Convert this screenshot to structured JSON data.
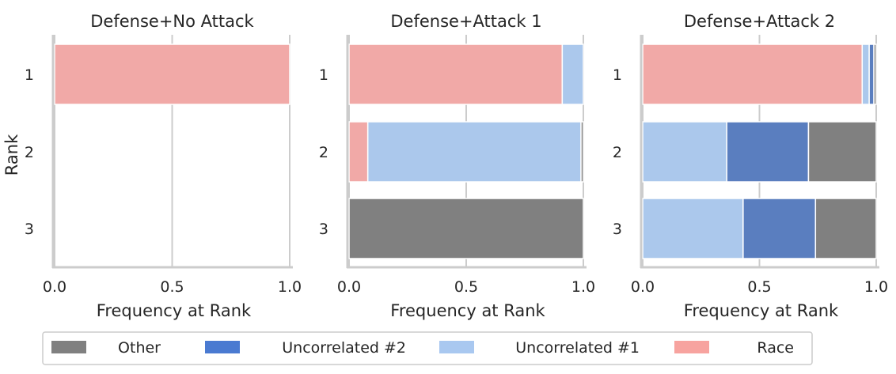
{
  "colors": {
    "Race": "#f1a9a7",
    "Uncorrelated #1": "#abc8ec",
    "Uncorrelated #2": "#5a7ebf",
    "Other": "#808080"
  },
  "legend": {
    "items": [
      "Other",
      "Uncorrelated #2",
      "Uncorrelated #1",
      "Race"
    ],
    "swatch_colors": {
      "Other": "#808080",
      "Uncorrelated #2": "#4a7ad1",
      "Uncorrelated #1": "#a9c8f0",
      "Race": "#f7a39f"
    },
    "placement": "bottom-center"
  },
  "chart_data": [
    {
      "type": "bar",
      "orientation": "horizontal",
      "stacked": true,
      "title": "Defense+No Attack",
      "xlabel": "Frequency at Rank",
      "ylabel": "Rank",
      "categories": [
        "1",
        "2",
        "3"
      ],
      "xlim": [
        0,
        1.0
      ],
      "xticks": [
        "0.0",
        "0.5",
        "1.0"
      ],
      "grid": "x",
      "series": [
        {
          "name": "Race",
          "values": [
            1.0,
            0,
            0
          ]
        },
        {
          "name": "Uncorrelated #1",
          "values": [
            0,
            0,
            0
          ]
        },
        {
          "name": "Uncorrelated #2",
          "values": [
            0,
            0,
            0
          ]
        },
        {
          "name": "Other",
          "values": [
            0,
            0,
            0
          ]
        }
      ]
    },
    {
      "type": "bar",
      "orientation": "horizontal",
      "stacked": true,
      "title": "Defense+Attack 1",
      "xlabel": "Frequency at Rank",
      "ylabel": "",
      "categories": [
        "1",
        "2",
        "3"
      ],
      "xlim": [
        0,
        1.0
      ],
      "xticks": [
        "0.0",
        "0.5",
        "1.0"
      ],
      "grid": "x",
      "series": [
        {
          "name": "Race",
          "values": [
            0.91,
            0.08,
            0
          ]
        },
        {
          "name": "Uncorrelated #1",
          "values": [
            0.09,
            0.91,
            0
          ]
        },
        {
          "name": "Uncorrelated #2",
          "values": [
            0,
            0,
            0
          ]
        },
        {
          "name": "Other",
          "values": [
            0,
            0.01,
            1.0
          ]
        }
      ]
    },
    {
      "type": "bar",
      "orientation": "horizontal",
      "stacked": true,
      "title": "Defense+Attack 2",
      "xlabel": "Frequency at Rank",
      "ylabel": "",
      "categories": [
        "1",
        "2",
        "3"
      ],
      "xlim": [
        0,
        1.0
      ],
      "xticks": [
        "0.0",
        "0.5",
        "1.0"
      ],
      "grid": "x",
      "series": [
        {
          "name": "Race",
          "values": [
            0.94,
            0,
            0
          ]
        },
        {
          "name": "Uncorrelated #1",
          "values": [
            0.03,
            0.36,
            0.43
          ]
        },
        {
          "name": "Uncorrelated #2",
          "values": [
            0.02,
            0.35,
            0.31
          ]
        },
        {
          "name": "Other",
          "values": [
            0.01,
            0.29,
            0.26
          ]
        }
      ]
    }
  ]
}
